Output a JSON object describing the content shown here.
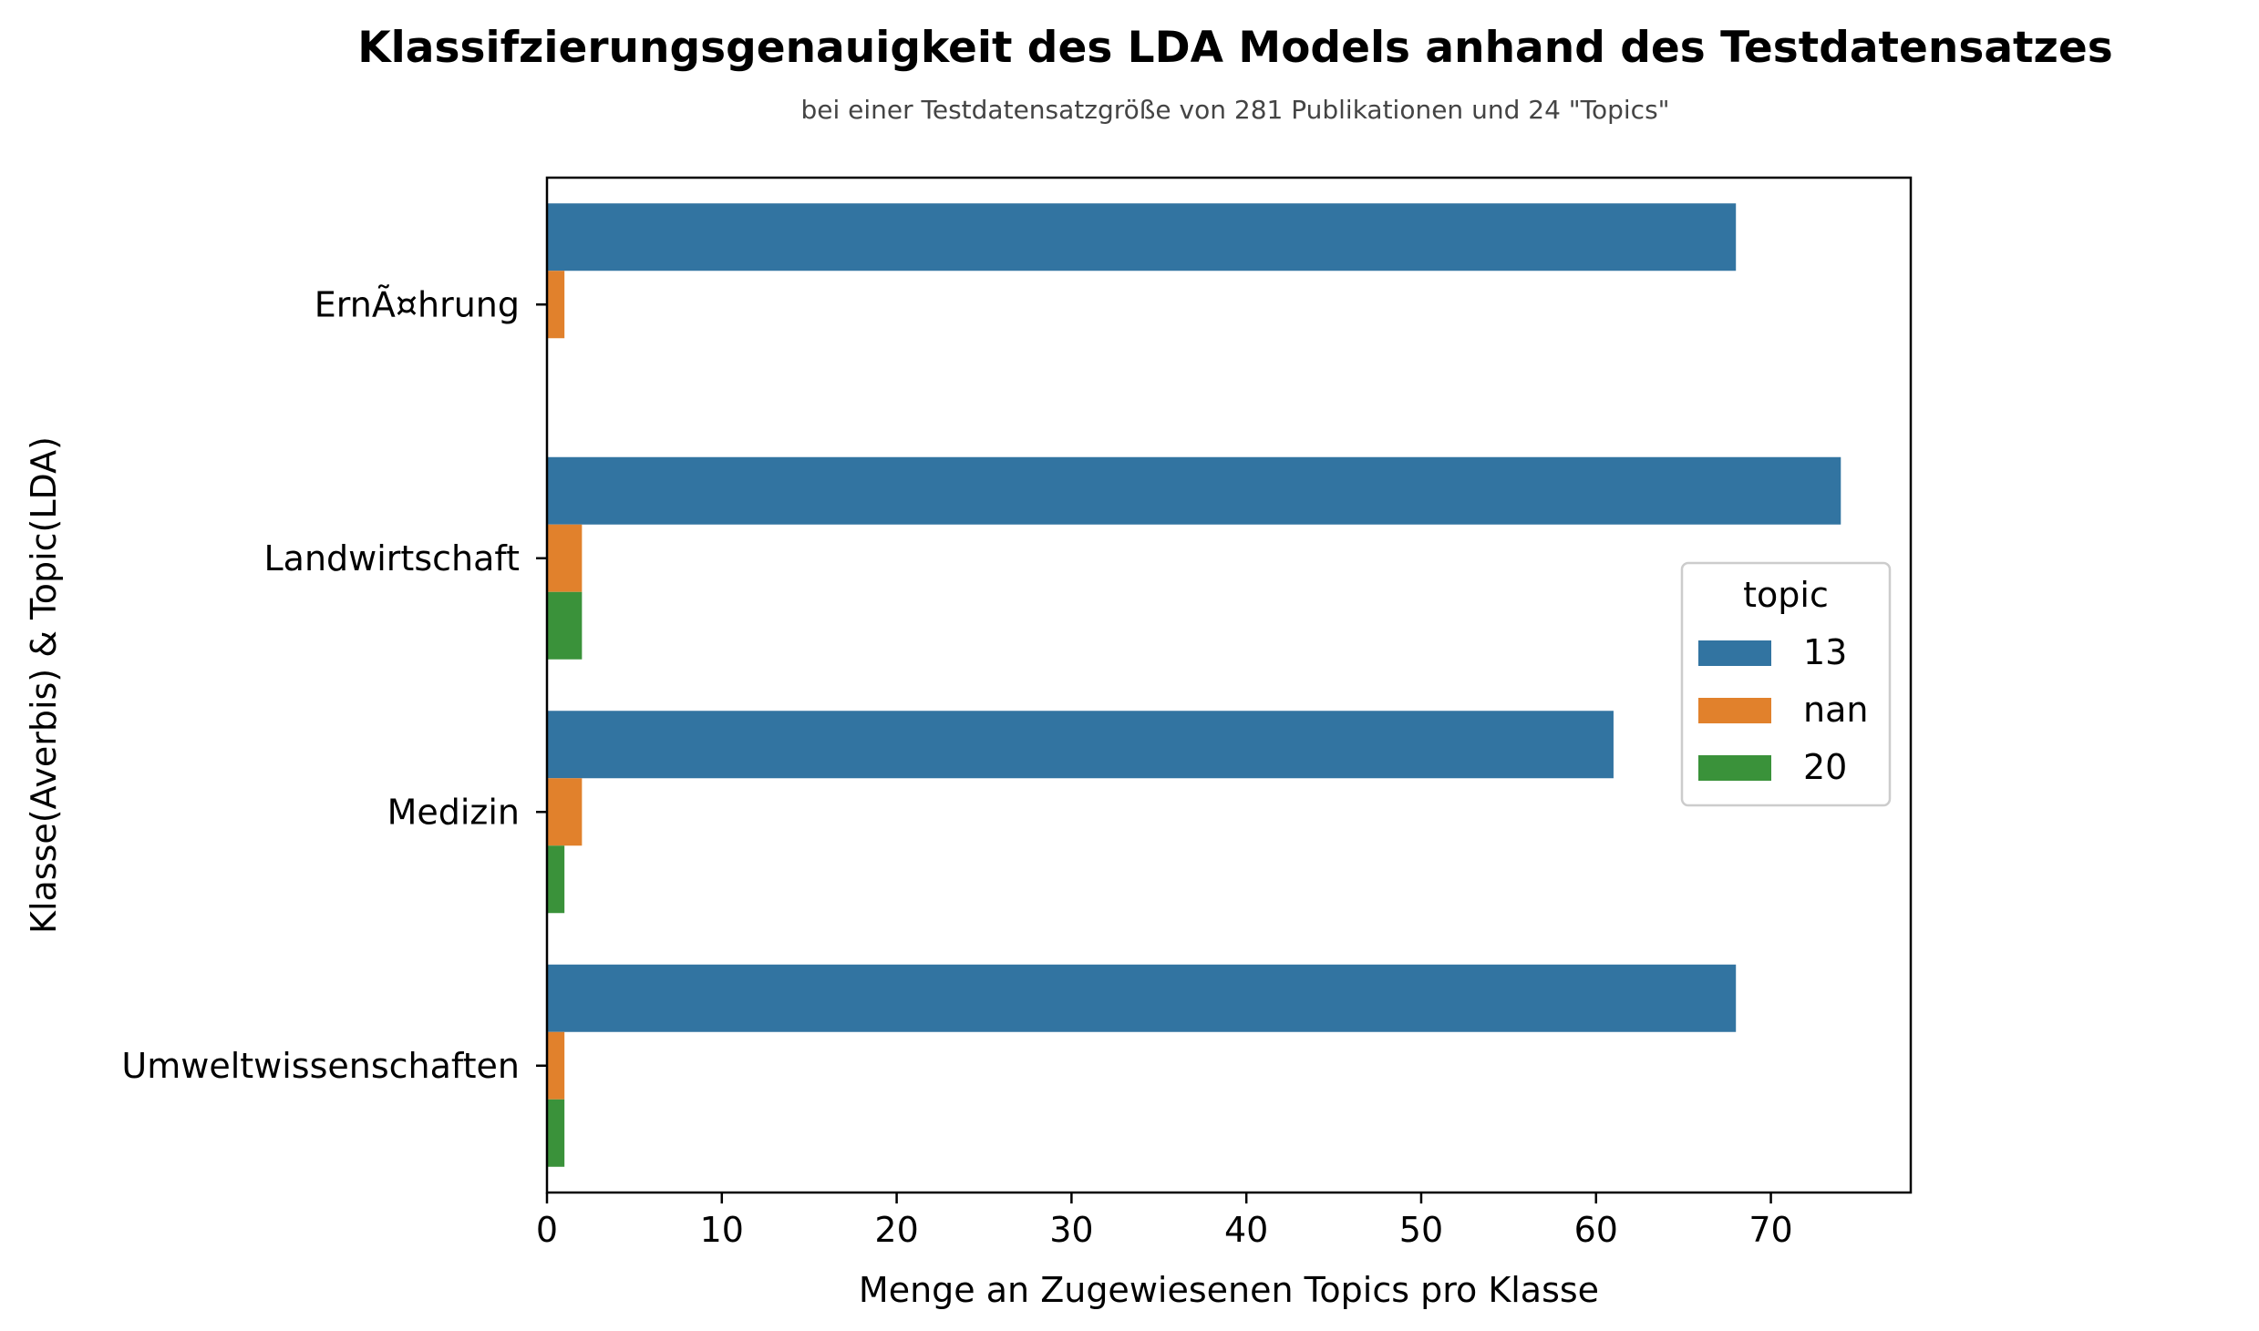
{
  "chart_data": {
    "type": "bar",
    "orientation": "horizontal",
    "title": "Klassifzierungsgenauigkeit des LDA Models anhand des Testdatensatzes",
    "subtitle": "bei einer Testdatensatzgröße von 281 Publikationen und 24 \"Topics\"",
    "xlabel": "Menge an Zugewiesenen Topics pro Klasse",
    "ylabel": "Klasse(Averbis) & Topic(LDA)",
    "categories": [
      "ErnÃ¤hrung",
      "Landwirtschaft",
      "Medizin",
      "Umweltwissenschaften"
    ],
    "series": [
      {
        "name": "13",
        "color": "#3274a1",
        "values": [
          68,
          74,
          61,
          68
        ]
      },
      {
        "name": "nan",
        "color": "#e1812c",
        "values": [
          1,
          2,
          2,
          1
        ]
      },
      {
        "name": "20",
        "color": "#3a923a",
        "values": [
          null,
          2,
          1,
          1
        ]
      }
    ],
    "xlim": [
      0,
      78
    ],
    "xticks": [
      0,
      10,
      20,
      30,
      40,
      50,
      60,
      70
    ],
    "grid": false,
    "legend": {
      "title": "topic",
      "position": "center-right"
    }
  }
}
